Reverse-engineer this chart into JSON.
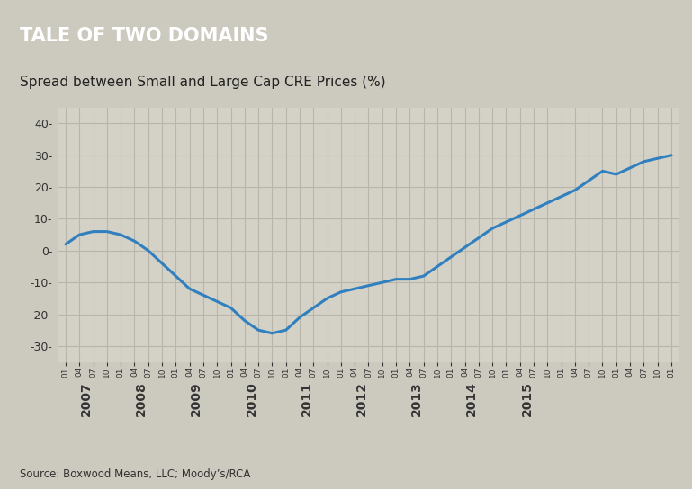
{
  "title": "TALE OF TWO DOMAINS",
  "subtitle": "Spread between Small and Large Cap CRE Prices (%)",
  "source": "Source: Boxwood Means, LLC; Moody’s/RCA",
  "fig_bg_color": "#ccc9bf",
  "plot_bg_color": "#d4d1c7",
  "header_bg_color": "#4a5872",
  "header_text_color": "#ffffff",
  "line_color": "#3080c0",
  "line_width": 2.2,
  "grid_color": "#b8b5ab",
  "ylim": [
    -35,
    45
  ],
  "yticks": [
    -30,
    -20,
    -10,
    0,
    10,
    20,
    30,
    40
  ],
  "x_year_labels": [
    "2007",
    "2008",
    "2009",
    "2010",
    "2011",
    "2012",
    "2013",
    "2014",
    "2015"
  ],
  "data_y": [
    2,
    5,
    6,
    6,
    5,
    3,
    0,
    -4,
    -8,
    -12,
    -14,
    -16,
    -18,
    -22,
    -25,
    -26,
    -25,
    -21,
    -18,
    -15,
    -13,
    -12,
    -11,
    -10,
    -9,
    -9,
    -8,
    -5,
    -2,
    1,
    4,
    7,
    9,
    11,
    13,
    15,
    17,
    19,
    22,
    25,
    24,
    26,
    28,
    29,
    30
  ]
}
